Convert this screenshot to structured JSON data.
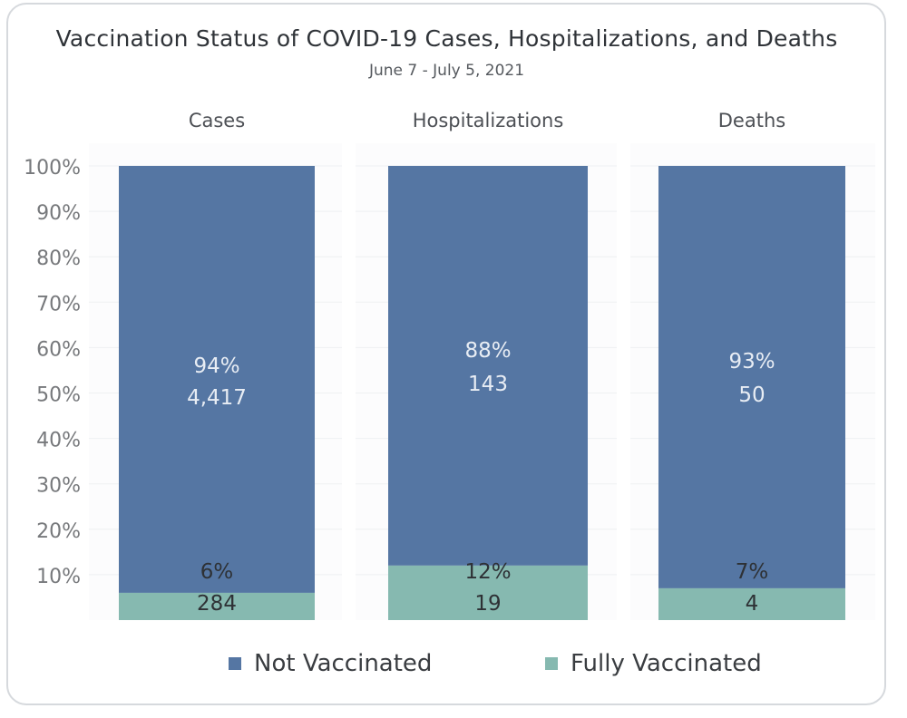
{
  "chart_data": {
    "type": "bar",
    "stacked": true,
    "title": "Vaccination Status of COVID-19 Cases, Hospitalizations, and Deaths",
    "subtitle": "June 7 - July 5, 2021",
    "categories": [
      "Cases",
      "Hospitalizations",
      "Deaths"
    ],
    "series": [
      {
        "name": "Fully Vaccinated",
        "color": "#86b9b0",
        "values": [
          6,
          12,
          7
        ],
        "pct_labels": [
          "6%",
          "12%",
          "7%"
        ],
        "count_labels": [
          "284",
          "19",
          "4"
        ]
      },
      {
        "name": "Not Vaccinated",
        "color": "#5576a3",
        "values": [
          94,
          88,
          93
        ],
        "pct_labels": [
          "94%",
          "88%",
          "93%"
        ],
        "count_labels": [
          "4,417",
          "143",
          "50"
        ]
      }
    ],
    "yticks": [
      "100%",
      "90%",
      "80%",
      "70%",
      "60%",
      "50%",
      "40%",
      "30%",
      "20%",
      "10%"
    ],
    "ylim": [
      0,
      100
    ],
    "grid": true,
    "legend_position": "bottom"
  }
}
